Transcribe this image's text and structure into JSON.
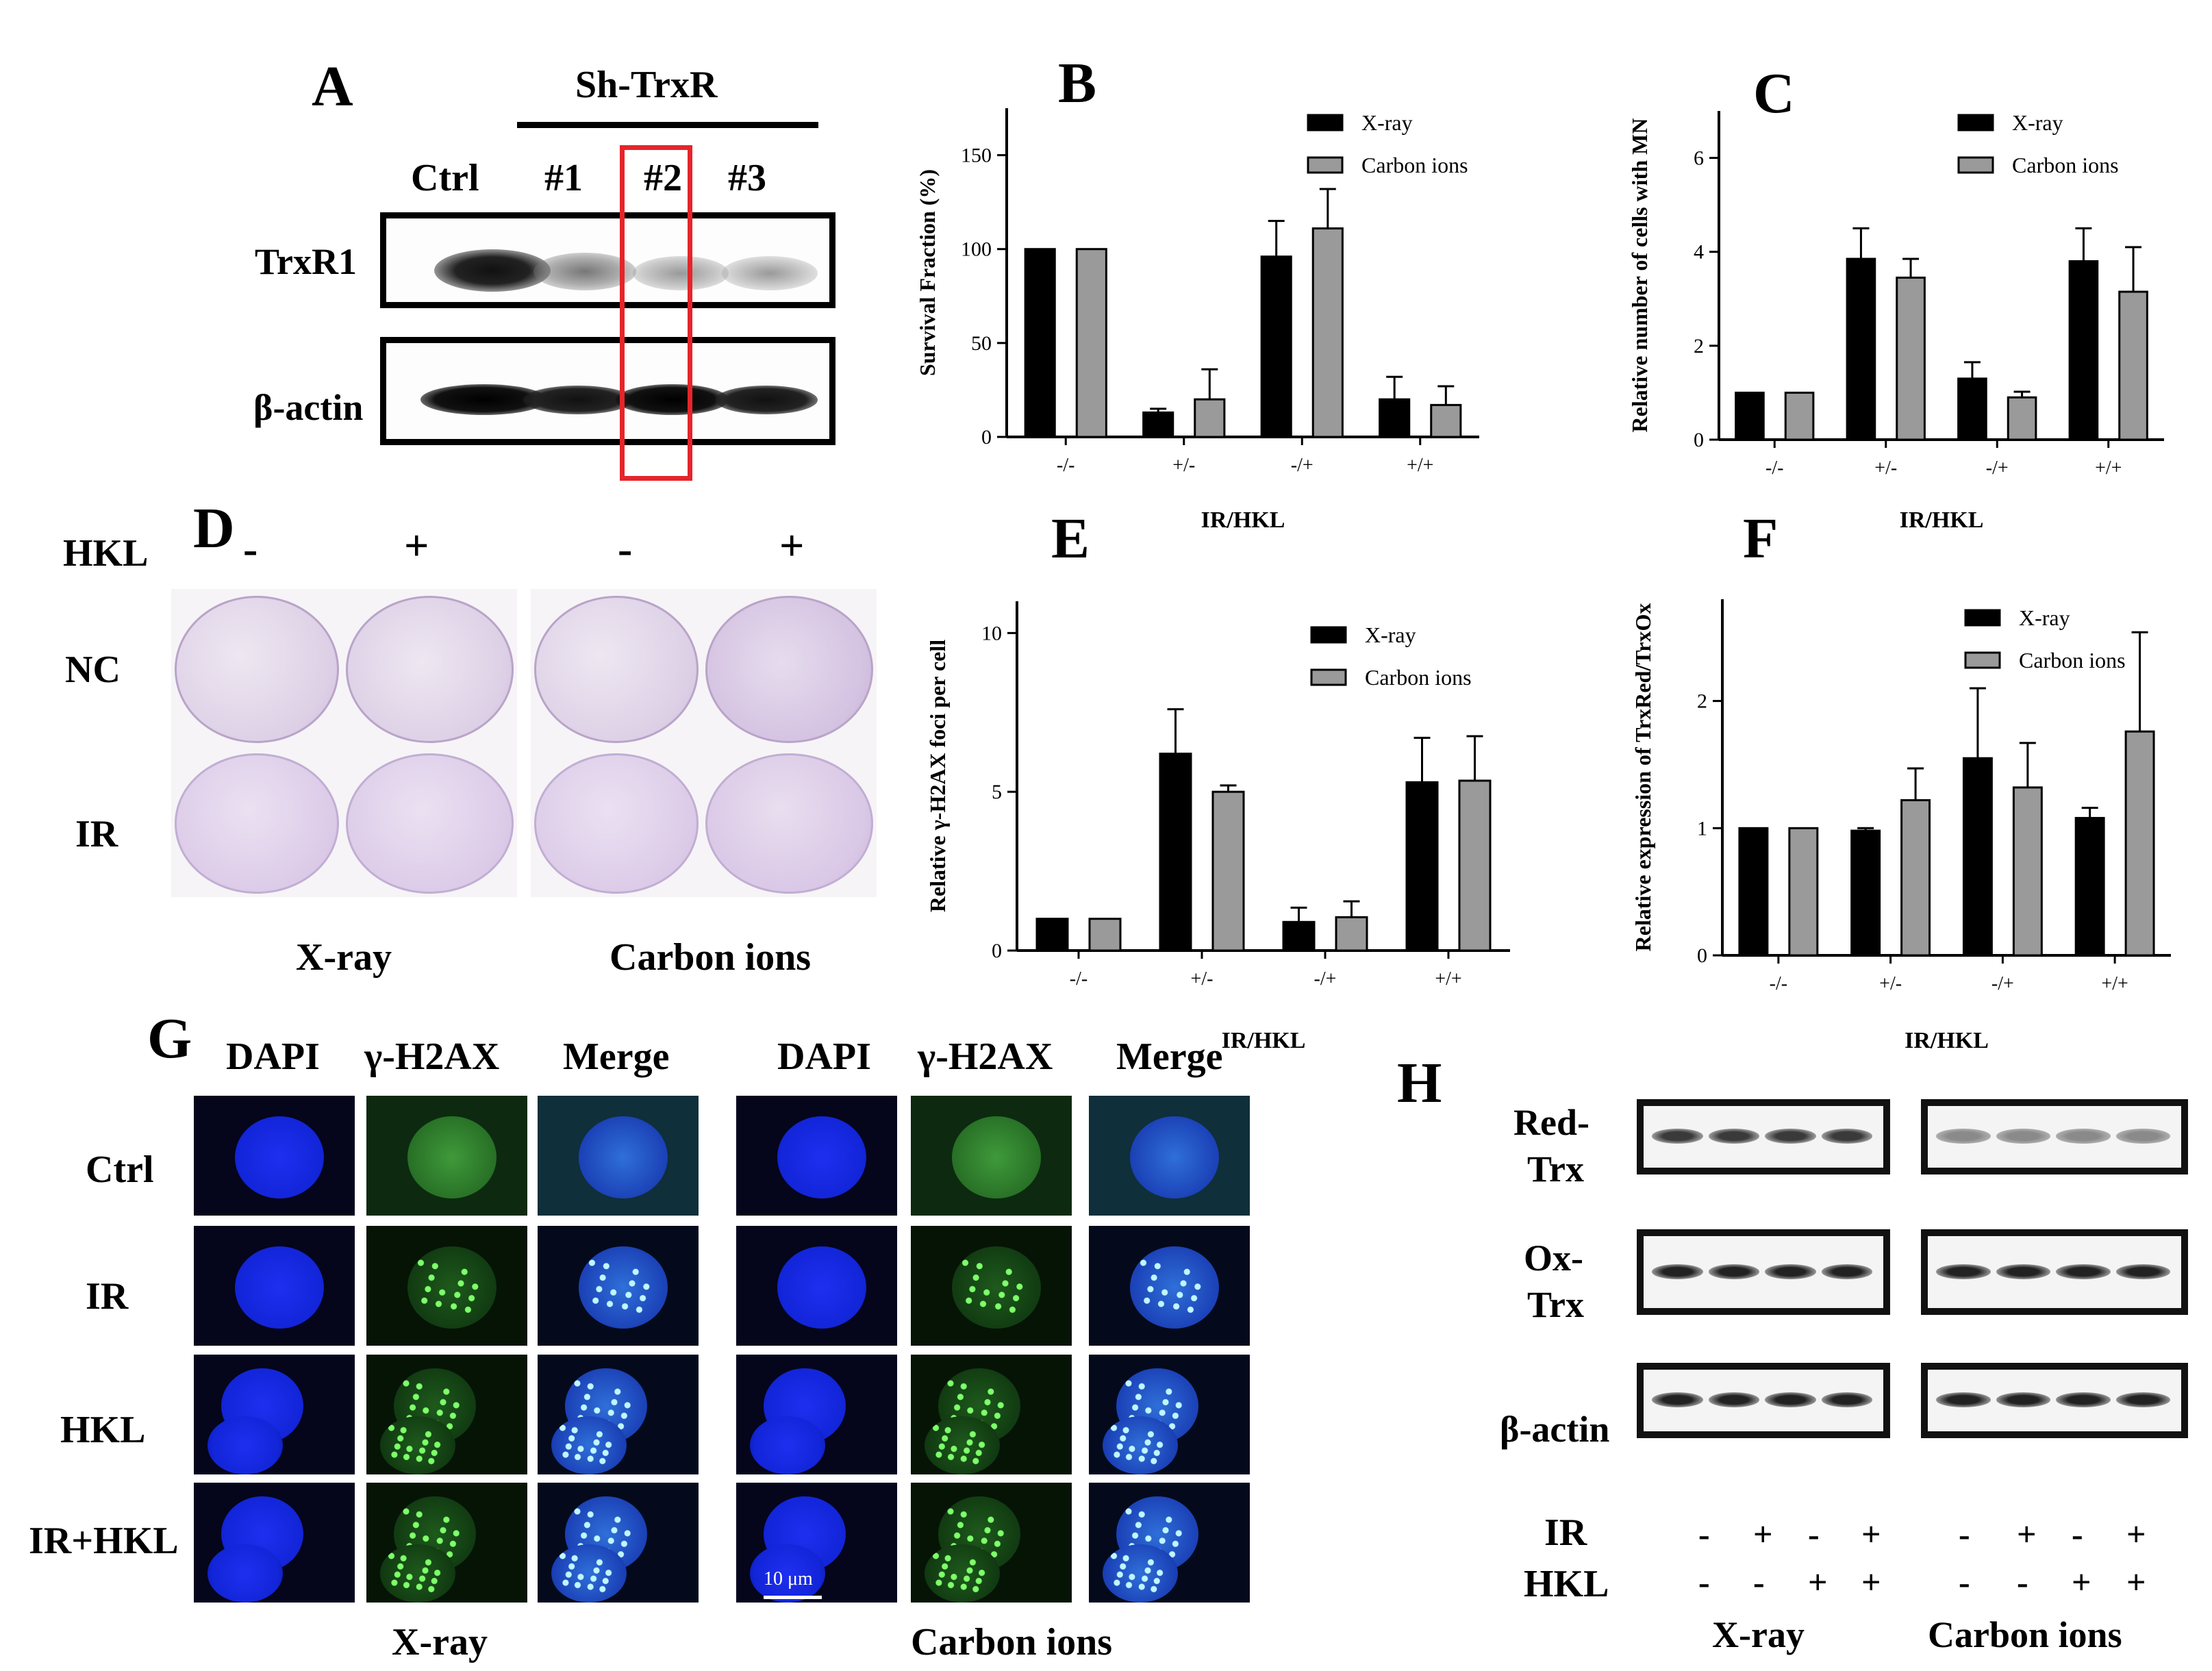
{
  "panels": {
    "A": "A",
    "B": "B",
    "C": "C",
    "D": "D",
    "E": "E",
    "F": "F",
    "G": "G",
    "H": "H"
  },
  "panelA": {
    "group_label": "Sh-TrxR",
    "lanes": [
      "Ctrl",
      "#1",
      "#2",
      "#3"
    ],
    "rows": [
      "TrxR1",
      "β-actin"
    ],
    "highlight_color": "#e5252a"
  },
  "panelD": {
    "hkl_label": "HKL",
    "hkl_signs": [
      "-",
      "+",
      "-",
      "+"
    ],
    "rows": [
      "NC",
      "IR"
    ],
    "columns": [
      "X-ray",
      "Carbon ions"
    ],
    "stain_color": "#7b3fa0"
  },
  "panelG": {
    "headers_left": [
      "DAPI",
      "γ-H2AX",
      "Merge"
    ],
    "headers_right": [
      "DAPI",
      "γ-H2AX",
      "Merge"
    ],
    "rows": [
      "Ctrl",
      "IR",
      "HKL",
      "IR+HKL"
    ],
    "bottom": [
      "X-ray",
      "Carbon ions"
    ],
    "scale_bar": "10 μm"
  },
  "panelH": {
    "row_labels": [
      [
        "Red-",
        "Trx"
      ],
      [
        "Ox-",
        "Trx"
      ],
      [
        "β-actin"
      ]
    ],
    "ir_label": "IR",
    "hkl_label": "HKL",
    "ir_signs": [
      "-",
      "+",
      "-",
      "+",
      "-",
      "+",
      "-",
      "+"
    ],
    "hkl_signs": [
      "-",
      "-",
      "+",
      "+",
      "-",
      "-",
      "+",
      "+"
    ],
    "bottom": [
      "X-ray",
      "Carbon ions"
    ]
  },
  "chart_data": [
    {
      "panel": "B",
      "type": "bar",
      "ylabel": "Survival Fraction (%)",
      "xlabel": "IR/HKL",
      "categories": [
        "-/-",
        "+/-",
        "-/+",
        "+/+"
      ],
      "ylim": [
        0,
        175
      ],
      "yticks": [
        0,
        50,
        100,
        150
      ],
      "series": [
        {
          "name": "X-ray",
          "color": "#000000",
          "values": [
            100,
            13,
            96,
            20
          ],
          "errors": [
            0,
            2,
            19,
            12
          ]
        },
        {
          "name": "Carbon ions",
          "color": "#9a9a9a",
          "values": [
            100,
            20,
            111,
            17
          ],
          "errors": [
            0,
            16,
            21,
            10
          ]
        }
      ],
      "legend": "top-right"
    },
    {
      "panel": "C",
      "type": "bar",
      "ylabel": "Relative number of cells with MN",
      "xlabel": "IR/HKL",
      "categories": [
        "-/-",
        "+/-",
        "-/+",
        "+/+"
      ],
      "ylim": [
        0,
        7
      ],
      "yticks": [
        0,
        2,
        4,
        6
      ],
      "series": [
        {
          "name": "X-ray",
          "color": "#000000",
          "values": [
            1.0,
            3.85,
            1.3,
            3.8
          ],
          "errors": [
            0,
            0.65,
            0.35,
            0.7
          ]
        },
        {
          "name": "Carbon ions",
          "color": "#9a9a9a",
          "values": [
            1.0,
            3.45,
            0.9,
            3.15
          ],
          "errors": [
            0,
            0.4,
            0.12,
            0.95
          ]
        }
      ],
      "legend": "top-right"
    },
    {
      "panel": "E",
      "type": "bar",
      "ylabel": "Relative γ-H2AX foci per cell",
      "xlabel": "IR/HKL",
      "categories": [
        "-/-",
        "+/-",
        "-/+",
        "+/+"
      ],
      "ylim": [
        0,
        11
      ],
      "yticks": [
        0,
        5,
        10
      ],
      "series": [
        {
          "name": "X-ray",
          "color": "#000000",
          "values": [
            1.0,
            6.2,
            0.9,
            5.3
          ],
          "errors": [
            0,
            1.4,
            0.45,
            1.4
          ]
        },
        {
          "name": "Carbon ions",
          "color": "#9a9a9a",
          "values": [
            1.0,
            5.0,
            1.05,
            5.35
          ],
          "errors": [
            0,
            0.2,
            0.5,
            1.4
          ]
        }
      ],
      "legend": "top-right"
    },
    {
      "panel": "F",
      "type": "bar",
      "ylabel": "Relative expression of TrxRed/TrxOx",
      "xlabel": "IR/HKL",
      "categories": [
        "-/-",
        "+/-",
        "-/+",
        "+/+"
      ],
      "ylim": [
        0,
        2.8
      ],
      "yticks": [
        0,
        1,
        2
      ],
      "series": [
        {
          "name": "X-ray",
          "color": "#000000",
          "values": [
            1.0,
            0.98,
            1.55,
            1.08
          ],
          "errors": [
            0,
            0.02,
            0.55,
            0.08
          ]
        },
        {
          "name": "Carbon ions",
          "color": "#9a9a9a",
          "values": [
            1.0,
            1.22,
            1.32,
            1.76
          ],
          "errors": [
            0,
            0.25,
            0.35,
            0.78
          ]
        }
      ],
      "legend": "top-right"
    }
  ]
}
